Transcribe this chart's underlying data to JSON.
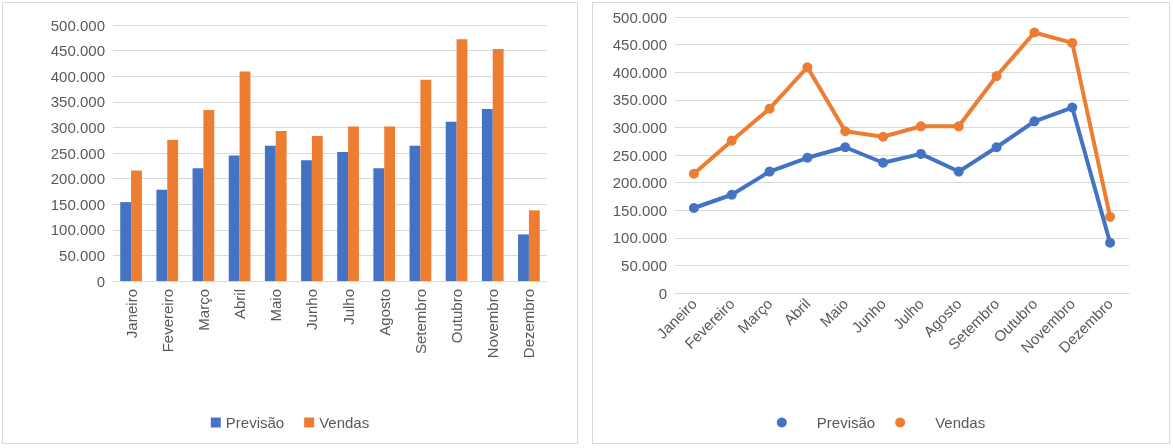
{
  "chart_data": [
    {
      "type": "bar",
      "categories": [
        "Janeiro",
        "Fevereiro",
        "Março",
        "Abril",
        "Maio",
        "Junho",
        "Julho",
        "Agosto",
        "Setembro",
        "Outubro",
        "Novembro",
        "Dezembro"
      ],
      "series": [
        {
          "name": "Previsão",
          "color": "#4472c4",
          "values": [
            154000,
            178000,
            220000,
            245000,
            264000,
            236000,
            252000,
            220000,
            264000,
            311000,
            336000,
            91000
          ]
        },
        {
          "name": "Vendas",
          "color": "#ed7d31",
          "values": [
            216000,
            276000,
            334000,
            409000,
            293000,
            283000,
            302000,
            302000,
            393000,
            472000,
            453000,
            138000
          ]
        }
      ],
      "ylim": [
        0,
        500000
      ],
      "yticks": [
        0,
        {
          "value": 50000,
          "label": "50.000"
        },
        {
          "value": 100000,
          "label": "100.000"
        },
        {
          "value": 150000,
          "label": "150.000"
        },
        {
          "value": 200000,
          "label": "200.000"
        },
        {
          "value": 250000,
          "label": "250.000"
        },
        {
          "value": 300000,
          "label": "300.000"
        },
        {
          "value": 350000,
          "label": "350.000"
        },
        {
          "value": 400000,
          "label": "400.000"
        },
        {
          "value": 450000,
          "label": "450.000"
        },
        {
          "value": 500000,
          "label": "500.000"
        }
      ],
      "grid": "y",
      "legend": "bottom"
    },
    {
      "type": "line",
      "categories": [
        "Janeiro",
        "Fevereiro",
        "Março",
        "Abril",
        "Maio",
        "Junho",
        "Julho",
        "Agosto",
        "Setembro",
        "Outubro",
        "Novembro",
        "Dezembro"
      ],
      "series": [
        {
          "name": "Previsão",
          "color": "#4472c4",
          "values": [
            154000,
            178000,
            220000,
            245000,
            264000,
            236000,
            252000,
            220000,
            264000,
            311000,
            336000,
            91000
          ]
        },
        {
          "name": "Vendas",
          "color": "#ed7d31",
          "values": [
            216000,
            276000,
            334000,
            409000,
            293000,
            283000,
            302000,
            302000,
            393000,
            472000,
            453000,
            138000
          ]
        }
      ],
      "ylim": [
        0,
        500000
      ],
      "yticks": [
        0,
        {
          "value": 50000,
          "label": "50.000"
        },
        {
          "value": 100000,
          "label": "100.000"
        },
        {
          "value": 150000,
          "label": "150.000"
        },
        {
          "value": 200000,
          "label": "200.000"
        },
        {
          "value": 250000,
          "label": "250.000"
        },
        {
          "value": 300000,
          "label": "300.000"
        },
        {
          "value": 350000,
          "label": "350.000"
        },
        {
          "value": 400000,
          "label": "400.000"
        },
        {
          "value": 450000,
          "label": "450.000"
        },
        {
          "value": 500000,
          "label": "500.000"
        }
      ],
      "grid": "y",
      "legend": "bottom",
      "marker": "circle",
      "line_style": "solid"
    }
  ]
}
